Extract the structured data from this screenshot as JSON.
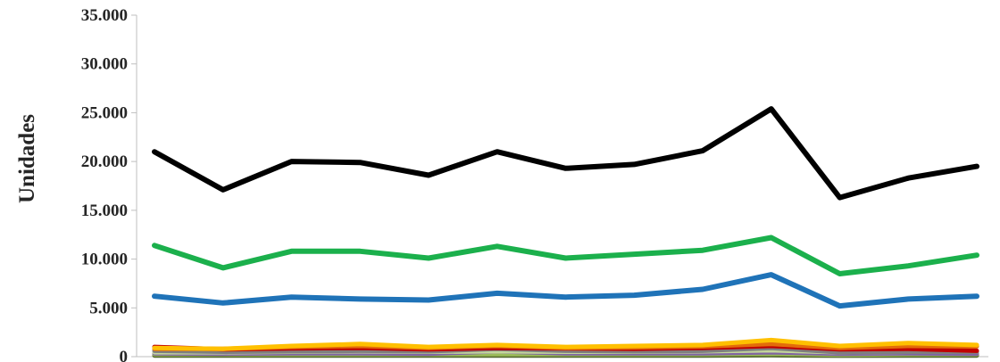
{
  "chart_data": {
    "type": "line",
    "title": "",
    "xlabel": "",
    "ylabel": "Unidades",
    "ylim": [
      0,
      35000
    ],
    "yticks": [
      0,
      5000,
      10000,
      15000,
      20000,
      25000,
      30000,
      35000
    ],
    "ytick_labels": [
      "0",
      "5.000",
      "10.000",
      "15.000",
      "20.000",
      "25.000",
      "30.000",
      "35.000"
    ],
    "grid": false,
    "legend": "none",
    "x": [
      1,
      2,
      3,
      4,
      5,
      6,
      7,
      8,
      9,
      10,
      11,
      12,
      13
    ],
    "series": [
      {
        "color": "#000000",
        "values": [
          21000,
          17100,
          20000,
          19900,
          18600,
          21000,
          19300,
          19700,
          21100,
          25400,
          16300,
          18300,
          19500
        ]
      },
      {
        "color": "#1bb04c",
        "values": [
          11400,
          9100,
          10800,
          10800,
          10100,
          11300,
          10100,
          10500,
          10900,
          12200,
          8500,
          9300,
          10400
        ]
      },
      {
        "color": "#1f73b8",
        "values": [
          6200,
          5500,
          6100,
          5900,
          5800,
          6500,
          6100,
          6300,
          6900,
          8400,
          5200,
          5900,
          6200
        ]
      },
      {
        "color": "#ffc000",
        "values": [
          900,
          800,
          1100,
          1300,
          1000,
          1200,
          1000,
          1100,
          1200,
          1700,
          1100,
          1400,
          1200
        ]
      },
      {
        "color": "#e36c0a",
        "values": [
          800,
          800,
          1000,
          1100,
          900,
          1100,
          900,
          950,
          1050,
          1300,
          900,
          1100,
          1050
        ]
      },
      {
        "color": "#c00000",
        "values": [
          1000,
          750,
          850,
          900,
          750,
          900,
          850,
          800,
          900,
          1100,
          750,
          800,
          600
        ]
      },
      {
        "color": "#7f7f7f",
        "values": [
          600,
          500,
          550,
          600,
          550,
          800,
          600,
          550,
          600,
          900,
          450,
          500,
          500
        ]
      },
      {
        "color": "#c3d69b",
        "values": [
          450,
          450,
          500,
          550,
          500,
          550,
          500,
          500,
          550,
          650,
          450,
          500,
          500
        ]
      },
      {
        "color": "#8064a2",
        "values": [
          350,
          300,
          350,
          350,
          300,
          550,
          350,
          350,
          350,
          450,
          300,
          350,
          300
        ]
      },
      {
        "color": "#9bbb59",
        "values": [
          250,
          250,
          250,
          250,
          250,
          250,
          250,
          250,
          250,
          300,
          200,
          250,
          250
        ]
      },
      {
        "color": "#4f6228",
        "values": [
          120,
          120,
          120,
          120,
          120,
          120,
          120,
          120,
          120,
          150,
          100,
          120,
          120
        ]
      }
    ]
  }
}
